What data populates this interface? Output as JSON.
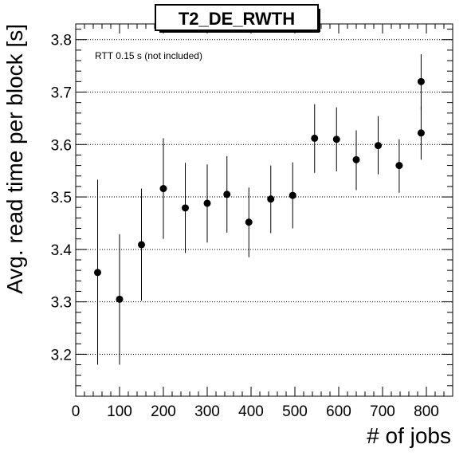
{
  "chart_data": {
    "type": "scatter",
    "title": "T2_DE_RWTH",
    "xlabel": "# of jobs",
    "ylabel": "Avg. read time per block [s]",
    "annotation": "RTT 0.15 s (not included)",
    "xlim": [
      0,
      860
    ],
    "ylim": [
      3.12,
      3.83
    ],
    "x_ticks": [
      0,
      100,
      200,
      300,
      400,
      500,
      600,
      700,
      800
    ],
    "x_tick_labels": [
      "0",
      "100",
      "200",
      "300",
      "400",
      "500",
      "600",
      "700",
      "800"
    ],
    "y_ticks": [
      3.2,
      3.3,
      3.4,
      3.5,
      3.6,
      3.7,
      3.8
    ],
    "y_tick_labels": [
      "3.2",
      "3.3",
      "3.4",
      "3.5",
      "3.6",
      "3.7",
      "3.8"
    ],
    "grid": "horizontal-dotted",
    "marker_color": "#000000",
    "series": [
      {
        "points": [
          {
            "x": 50,
            "y": 3.356,
            "err_low": 3.18,
            "err_high": 3.533
          },
          {
            "x": 100,
            "y": 3.305,
            "err_low": 3.18,
            "err_high": 3.429
          },
          {
            "x": 150,
            "y": 3.409,
            "err_low": 3.302,
            "err_high": 3.516
          },
          {
            "x": 200,
            "y": 3.516,
            "err_low": 3.42,
            "err_high": 3.612
          },
          {
            "x": 250,
            "y": 3.479,
            "err_low": 3.393,
            "err_high": 3.565
          },
          {
            "x": 300,
            "y": 3.488,
            "err_low": 3.413,
            "err_high": 3.562
          },
          {
            "x": 345,
            "y": 3.505,
            "err_low": 3.432,
            "err_high": 3.578
          },
          {
            "x": 395,
            "y": 3.452,
            "err_low": 3.385,
            "err_high": 3.518
          },
          {
            "x": 445,
            "y": 3.496,
            "err_low": 3.431,
            "err_high": 3.56
          },
          {
            "x": 495,
            "y": 3.503,
            "err_low": 3.44,
            "err_high": 3.566
          },
          {
            "x": 545,
            "y": 3.612,
            "err_low": 3.546,
            "err_high": 3.677
          },
          {
            "x": 595,
            "y": 3.61,
            "err_low": 3.549,
            "err_high": 3.671
          },
          {
            "x": 640,
            "y": 3.571,
            "err_low": 3.513,
            "err_high": 3.627
          },
          {
            "x": 690,
            "y": 3.598,
            "err_low": 3.543,
            "err_high": 3.654
          },
          {
            "x": 738,
            "y": 3.56,
            "err_low": 3.508,
            "err_high": 3.61
          },
          {
            "x": 788,
            "y": 3.622,
            "err_low": 3.571,
            "err_high": 3.672
          },
          {
            "x": 788,
            "y": 3.72,
            "err_low": 3.667,
            "err_high": 3.772
          }
        ]
      }
    ]
  }
}
